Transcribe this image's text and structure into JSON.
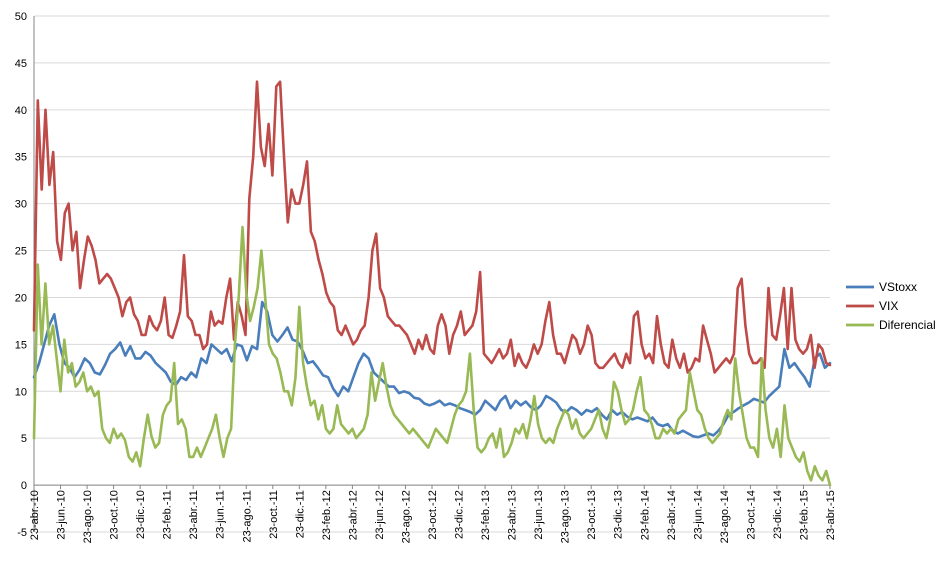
{
  "chart_data": {
    "type": "line",
    "title": "",
    "xlabel": "",
    "ylabel": "",
    "ylim": [
      -5,
      50
    ],
    "yticks": [
      -5,
      0,
      5,
      10,
      15,
      20,
      25,
      30,
      35,
      40,
      45,
      50
    ],
    "grid": true,
    "legend_position": "right",
    "x_start": "2010-04-23",
    "x_end": "2015-04-23",
    "x_tick_labels": [
      "23-abr.-10",
      "23-jun.-10",
      "23-ago.-10",
      "23-oct.-10",
      "23-dic.-10",
      "23-feb.-11",
      "23-abr.-11",
      "23-jun.-11",
      "23-ago.-11",
      "23-oct.-11",
      "23-dic.-11",
      "23-feb.-12",
      "23-abr.-12",
      "23-jun.-12",
      "23-ago.-12",
      "23-oct.-12",
      "23-dic.-12",
      "23-feb.-13",
      "23-abr.-13",
      "23-jun.-13",
      "23-ago.-13",
      "23-oct.-13",
      "23-dic.-13",
      "23-feb.-14",
      "23-abr.-14",
      "23-jun.-14",
      "23-ago.-14",
      "23-oct.-14",
      "23-dic.-14",
      "23-feb.-15",
      "23-abr.-15"
    ],
    "series": [
      {
        "name": "VStoxx",
        "color": "#4a7ebb",
        "values": [
          11.5,
          13,
          15,
          17,
          18.2,
          15,
          13,
          12.5,
          11.5,
          12.3,
          13.5,
          13,
          12,
          11.8,
          12.8,
          14,
          14.5,
          15.2,
          13.8,
          14.8,
          13.5,
          13.5,
          14.2,
          13.8,
          13,
          12.5,
          12,
          11,
          10.7,
          11.5,
          11.2,
          12,
          11.5,
          13.5,
          13,
          15,
          14.5,
          14,
          14.5,
          13.2,
          15,
          14.8,
          13.3,
          14.8,
          14.5,
          19.5,
          18.5,
          16,
          15.3,
          16,
          16.8,
          15.5,
          15.3,
          14.3,
          13,
          13.2,
          12.5,
          11.7,
          11.5,
          10.3,
          9.5,
          10.5,
          10,
          11.5,
          13,
          14,
          13.5,
          12,
          11.5,
          11,
          10.5,
          10.5,
          9.8,
          10,
          9.8,
          9.3,
          9.2,
          8.7,
          8.5,
          8.7,
          9,
          8.5,
          8.7,
          8.5,
          8.2,
          8,
          7.8,
          7.5,
          8,
          9,
          8.5,
          8,
          9,
          9.5,
          8.2,
          9,
          8.5,
          8.9,
          8.3,
          8,
          8.5,
          9.5,
          9.2,
          8.8,
          8,
          7.8,
          8.3,
          8,
          7.5,
          8,
          7.8,
          8.2,
          7.5,
          7,
          8,
          7.5,
          7.8,
          7.3,
          7,
          7.2,
          7,
          6.8,
          7.2,
          6.5,
          6.3,
          6.5,
          5.8,
          5.5,
          5.8,
          5.5,
          5.2,
          5.1,
          5.3,
          5.5,
          5.3,
          5.8,
          6.5,
          7.5,
          7.8,
          8.2,
          8.5,
          8.8,
          9.2,
          9,
          8.8,
          9.5,
          10,
          10.5,
          14.5,
          12.5,
          13,
          12.2,
          11.5,
          10.5,
          13.5,
          14,
          12.5,
          13
        ],
        "name_label": "VStoxx"
      },
      {
        "name": "VIX",
        "color": "#be4b48",
        "values": [
          16.5,
          41,
          31.5,
          40,
          32,
          35.5,
          26,
          24,
          29,
          30,
          25,
          27,
          21,
          24,
          26.5,
          25.5,
          24,
          21.5,
          22,
          22.5,
          22,
          21,
          20,
          18,
          19.5,
          20,
          18.2,
          17.5,
          16,
          16,
          18,
          17,
          16.5,
          17.5,
          20,
          16,
          15.7,
          17,
          18.5,
          24.5,
          18,
          17.5,
          16,
          16,
          14.5,
          15,
          18.5,
          17,
          17.5,
          17.2,
          20,
          22,
          15.5,
          19.5,
          18,
          16,
          30.5,
          35,
          43,
          36,
          34,
          38.5,
          33,
          42.5,
          43,
          35,
          28,
          31.5,
          30,
          30,
          32,
          34.5,
          27,
          26,
          24,
          22.5,
          20.5,
          19.5,
          19,
          16.5,
          16,
          17,
          16,
          15,
          15.5,
          16.5,
          17,
          20,
          25,
          26.8,
          21,
          20,
          18,
          17.5,
          17,
          17,
          16.5,
          16,
          15,
          14,
          15.5,
          14.5,
          16,
          14.5,
          14,
          17,
          18.2,
          17,
          14,
          16,
          17,
          18.5,
          16,
          16.5,
          17,
          18.5,
          22.7,
          14,
          13.5,
          13,
          13.7,
          14.5,
          13.5,
          14,
          15.5,
          12.7,
          14,
          13,
          12.5,
          13.5,
          15,
          14,
          15,
          17.5,
          19.5,
          16,
          14,
          14,
          13,
          14.5,
          16,
          15.5,
          14,
          15,
          17,
          16,
          13,
          12.5,
          12.5,
          13,
          13.5,
          14,
          13,
          12.5,
          14,
          13,
          18,
          18.5,
          15,
          13.5,
          14,
          13,
          18,
          15,
          13,
          12.5,
          15.5,
          13.5,
          12.5,
          14,
          12,
          12.5,
          13.5,
          13.2,
          17,
          15.5,
          14,
          12,
          12.5,
          13,
          13.5,
          13,
          14,
          21,
          22,
          17,
          14,
          13,
          13,
          13.5,
          12.5,
          21,
          16,
          15.5,
          18,
          21,
          14.5,
          21,
          15.5,
          14.5,
          14,
          14.5,
          16,
          12.5,
          15,
          14.5,
          13,
          12.8
        ],
        "name_label": "VIX"
      },
      {
        "name": "Diferencial",
        "color": "#98b954",
        "values": [
          5,
          23.5,
          15,
          21.5,
          15,
          17,
          13.5,
          10,
          15.5,
          12,
          13,
          10.5,
          11,
          12,
          10,
          10.5,
          9.5,
          10,
          6,
          5,
          4.5,
          6,
          5,
          5.5,
          4.8,
          3,
          2.5,
          3.5,
          2,
          5,
          7.5,
          5.2,
          4,
          4.5,
          7.5,
          8.5,
          9,
          13,
          6.5,
          7,
          6,
          3,
          3,
          4,
          3,
          4,
          5,
          6,
          7.5,
          5,
          3,
          5,
          6,
          15,
          20,
          27.5,
          20.5,
          17.5,
          19,
          21,
          25,
          20,
          15,
          14,
          13.5,
          12,
          10,
          10,
          8.5,
          11.5,
          19,
          13,
          10.5,
          8.5,
          9,
          7,
          8.5,
          6,
          5.5,
          6,
          8.5,
          6.5,
          6,
          5.5,
          6,
          5,
          5.5,
          6,
          7.5,
          12,
          9,
          11,
          13,
          10.5,
          8.5,
          7.5,
          7,
          6.5,
          6,
          5.5,
          6,
          5.5,
          5,
          4.5,
          4,
          5,
          6,
          5.5,
          5,
          4.5,
          6,
          7.5,
          8.5,
          9,
          10,
          14,
          8,
          4,
          3.5,
          4,
          5,
          5.5,
          4,
          6,
          3,
          3.5,
          4.5,
          6,
          5.5,
          6.5,
          5,
          7,
          9.5,
          6.5,
          5,
          4.5,
          5,
          4.5,
          6,
          7,
          8,
          7.5,
          6,
          7,
          5.5,
          5,
          5.5,
          6,
          7,
          8,
          6,
          5,
          7,
          11,
          10,
          8,
          6.5,
          7,
          8,
          10,
          11.5,
          8,
          7.5,
          6.5,
          5,
          5,
          6,
          5.5,
          6,
          5.5,
          7,
          7.5,
          8,
          12,
          10,
          8,
          7.5,
          6,
          5,
          4.5,
          5,
          5.5,
          7,
          8,
          7,
          13.5,
          10,
          7.5,
          5,
          4,
          4,
          3,
          13.5,
          8,
          5,
          4,
          6,
          3,
          8.5,
          5,
          4,
          3,
          2.5,
          3.5,
          1.5,
          0.5,
          2,
          1,
          0.5,
          1.5,
          0
        ]
      }
    ]
  }
}
